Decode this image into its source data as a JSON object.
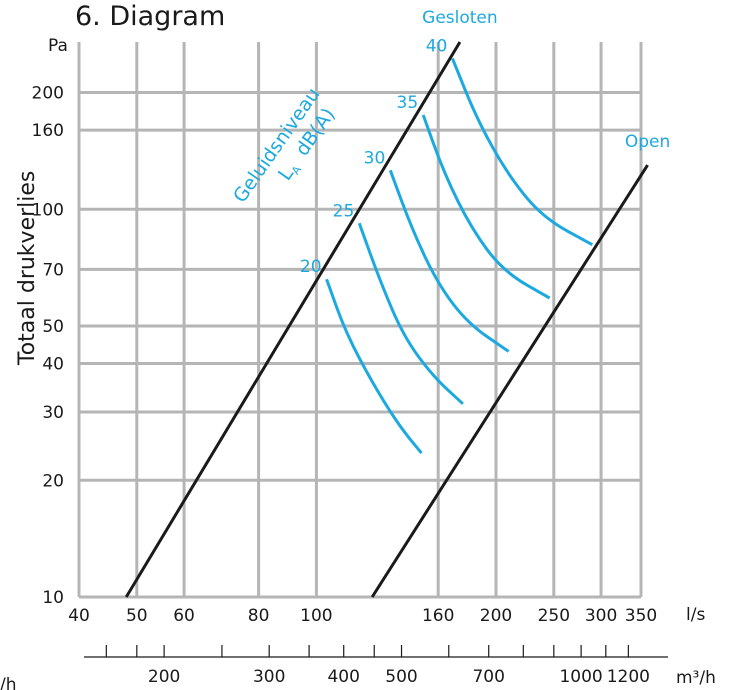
{
  "title": "6. Diagram",
  "chart_data": {
    "type": "line",
    "title": "6. Diagram",
    "ylabel": "Totaal drukverlies",
    "y_unit": "Pa",
    "x_unit": "l/s",
    "x2_unit": "m³/h",
    "y_scale": "log",
    "x_scale": "log",
    "ylim": [
      10,
      270
    ],
    "xlim": [
      40,
      350
    ],
    "y_ticks": [
      10,
      20,
      30,
      40,
      50,
      70,
      100,
      160,
      200
    ],
    "x_ticks": [
      40,
      50,
      60,
      80,
      100,
      160,
      200,
      250,
      300,
      350
    ],
    "x2_ticks": [
      200,
      300,
      400,
      500,
      700,
      1000,
      1200
    ],
    "x2_partial_label": "/h",
    "boundary_lines": [
      {
        "name": "Gesloten",
        "points": [
          [
            48,
            10
          ],
          [
            174,
            270
          ]
        ]
      },
      {
        "name": "Open",
        "points": [
          [
            124,
            10
          ],
          [
            359,
            130
          ]
        ]
      }
    ],
    "noise_curve_title": "Geluidsniveau",
    "noise_curve_symbol": "L",
    "noise_curve_subscript": "A",
    "noise_curve_unit": "dB(A)",
    "noise_curves": [
      {
        "label": "20",
        "points": [
          [
            104,
            66
          ],
          [
            112,
            48
          ],
          [
            125,
            35
          ],
          [
            138,
            27.5
          ],
          [
            150,
            23.5
          ]
        ]
      },
      {
        "label": "25",
        "points": [
          [
            118,
            92
          ],
          [
            128,
            65
          ],
          [
            140,
            47
          ],
          [
            157,
            37
          ],
          [
            176,
            31.5
          ]
        ]
      },
      {
        "label": "30",
        "points": [
          [
            133,
            126
          ],
          [
            145,
            88
          ],
          [
            160,
            64
          ],
          [
            180,
            50.5
          ],
          [
            210,
            43
          ]
        ]
      },
      {
        "label": "35",
        "points": [
          [
            151,
            175
          ],
          [
            164,
            123
          ],
          [
            182,
            89
          ],
          [
            206,
            69
          ],
          [
            246,
            59
          ]
        ]
      },
      {
        "label": "40",
        "points": [
          [
            169,
            245
          ],
          [
            186,
            170
          ],
          [
            210,
            122
          ],
          [
            240,
            95
          ],
          [
            290,
            81
          ]
        ]
      }
    ]
  }
}
